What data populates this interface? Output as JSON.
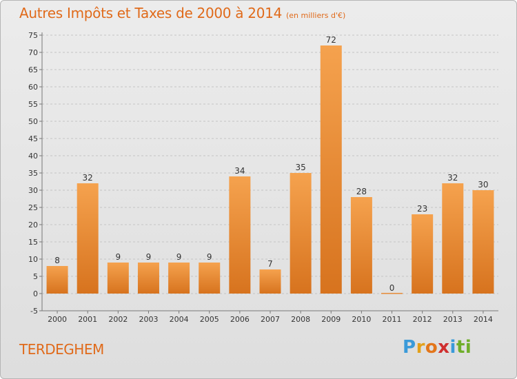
{
  "title": "Autres Impôts et Taxes de 2000 à 2014",
  "subtitle": "(en milliers d'€)",
  "commune": "TERDEGHEM",
  "logo": {
    "letters": [
      "P",
      "r",
      "o",
      "x",
      "i",
      "t",
      "i"
    ],
    "colors": [
      "#3a9ad9",
      "#e3a019",
      "#e3761a",
      "#cf2f2f",
      "#3a9ad9",
      "#6fae2a",
      "#6fae2a"
    ]
  },
  "colors": {
    "accent": "#e06a1a",
    "bar_top": "#f5a24e",
    "bar_bottom": "#d7731e",
    "grid": "#c4c4c4"
  },
  "chart_data": {
    "type": "bar",
    "title": "Autres Impôts et Taxes de 2000 à 2014",
    "subtitle": "(en milliers d'€)",
    "xlabel": "",
    "ylabel": "",
    "categories": [
      "2000",
      "2001",
      "2002",
      "2003",
      "2004",
      "2005",
      "2006",
      "2007",
      "2008",
      "2009",
      "2010",
      "2011",
      "2012",
      "2013",
      "2014"
    ],
    "values": [
      8,
      32,
      9,
      9,
      9,
      9,
      34,
      7,
      35,
      72,
      28,
      0,
      23,
      32,
      30
    ],
    "ylim": [
      -5,
      75
    ],
    "yticks": [
      -5,
      0,
      5,
      10,
      15,
      20,
      25,
      30,
      35,
      40,
      45,
      50,
      55,
      60,
      65,
      70,
      75
    ],
    "grid": true,
    "data_labels": true
  }
}
